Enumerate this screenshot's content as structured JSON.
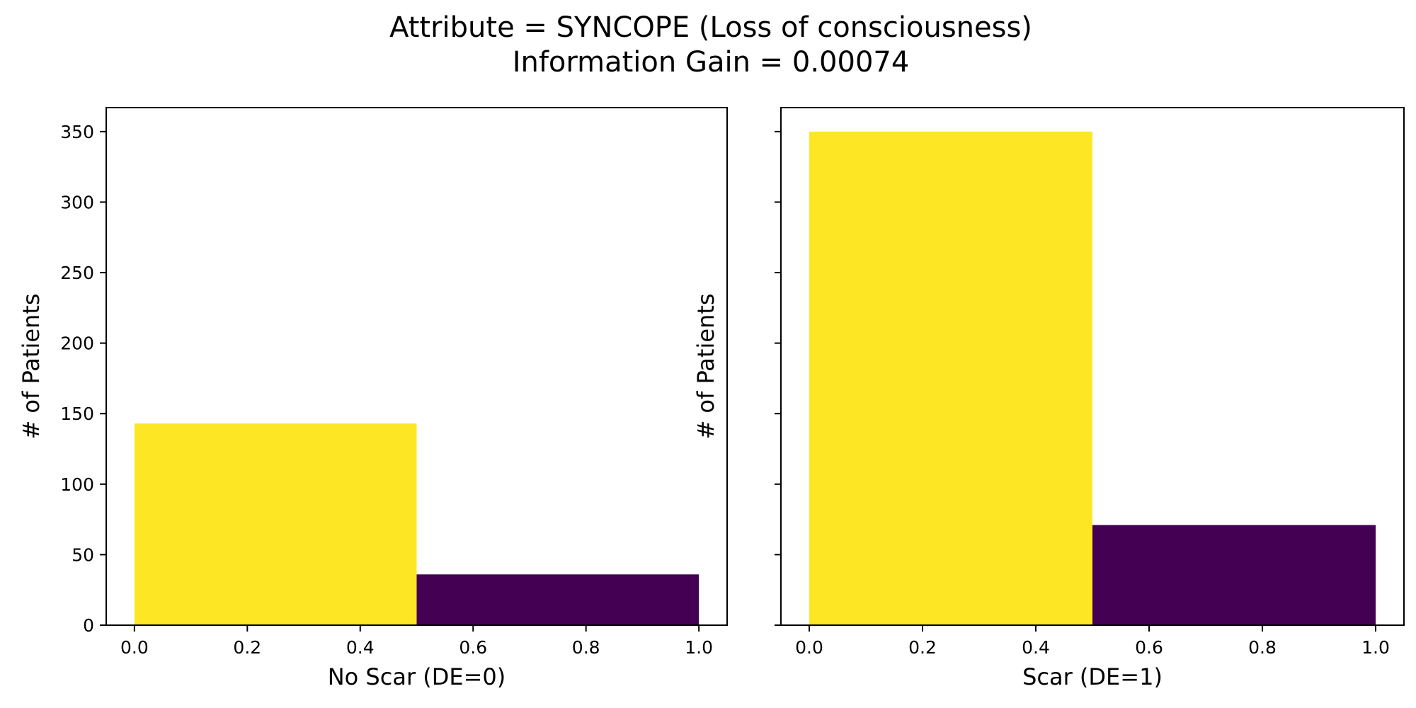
{
  "figure": {
    "title_line1": "Attribute = SYNCOPE (Loss of consciousness)",
    "title_line2": "Information Gain = 0.00074"
  },
  "colors": {
    "bin_low": "#fde725",
    "bin_high": "#440154",
    "axis": "#000000",
    "background": "#ffffff"
  },
  "chart_data": [
    {
      "type": "bar",
      "xlabel": "No Scar (DE=0)",
      "ylabel": "# of Patients",
      "xlim": [
        -0.05,
        1.05
      ],
      "ylim": [
        0,
        367
      ],
      "xticks": [
        0.0,
        0.2,
        0.4,
        0.6,
        0.8,
        1.0
      ],
      "xtick_labels": [
        "0.0",
        "0.2",
        "0.4",
        "0.6",
        "0.8",
        "1.0"
      ],
      "yticks": [
        0,
        50,
        100,
        150,
        200,
        250,
        300,
        350
      ],
      "ytick_labels": [
        "0",
        "50",
        "100",
        "150",
        "200",
        "250",
        "300",
        "350"
      ],
      "show_ytick_labels": true,
      "bins": [
        {
          "x0": 0.0,
          "x1": 0.5,
          "value": 143,
          "color": "#fde725"
        },
        {
          "x0": 0.5,
          "x1": 1.0,
          "value": 36,
          "color": "#440154"
        }
      ],
      "grid": false
    },
    {
      "type": "bar",
      "xlabel": "Scar (DE=1)",
      "ylabel": "# of Patients",
      "xlim": [
        -0.05,
        1.05
      ],
      "ylim": [
        0,
        367
      ],
      "xticks": [
        0.0,
        0.2,
        0.4,
        0.6,
        0.8,
        1.0
      ],
      "xtick_labels": [
        "0.0",
        "0.2",
        "0.4",
        "0.6",
        "0.8",
        "1.0"
      ],
      "yticks": [
        0,
        50,
        100,
        150,
        200,
        250,
        300,
        350
      ],
      "ytick_labels": [
        "0",
        "50",
        "100",
        "150",
        "200",
        "250",
        "300",
        "350"
      ],
      "show_ytick_labels": false,
      "bins": [
        {
          "x0": 0.0,
          "x1": 0.5,
          "value": 350,
          "color": "#fde725"
        },
        {
          "x0": 0.5,
          "x1": 1.0,
          "value": 71,
          "color": "#440154"
        }
      ],
      "grid": false
    }
  ]
}
